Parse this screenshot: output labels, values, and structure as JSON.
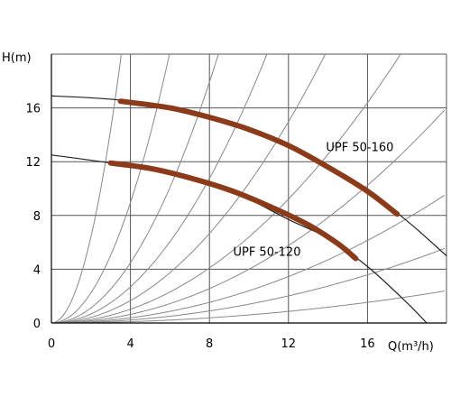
{
  "chart_data": {
    "type": "line",
    "title": "",
    "xlabel": "Q(m³/h)",
    "ylabel": "H(m)",
    "xlim": [
      0,
      20
    ],
    "ylim": [
      0,
      20
    ],
    "xticks": [
      "0",
      "4",
      "8",
      "12",
      "16"
    ],
    "yticks": [
      "0",
      "4",
      "8",
      "12",
      "16"
    ],
    "grid": true,
    "series": [
      {
        "name": "UPF 50-160",
        "style": "thick-brown",
        "color": "#8b3a1a",
        "points": [
          [
            3.5,
            16.5
          ],
          [
            6,
            16.0
          ],
          [
            8,
            15.3
          ],
          [
            10,
            14.4
          ],
          [
            12,
            13.2
          ],
          [
            14,
            11.6
          ],
          [
            16,
            9.8
          ],
          [
            17.5,
            8.1
          ]
        ]
      },
      {
        "name": "UPF 50-120",
        "style": "thick-brown",
        "color": "#8b3a1a",
        "points": [
          [
            3,
            11.9
          ],
          [
            5,
            11.5
          ],
          [
            7,
            10.8
          ],
          [
            9,
            9.9
          ],
          [
            11,
            8.7
          ],
          [
            13,
            7.3
          ],
          [
            14.5,
            5.9
          ],
          [
            15.4,
            4.8
          ]
        ]
      },
      {
        "name": "",
        "style": "thin-black",
        "color": "#222222",
        "points": [
          [
            0,
            16.9
          ],
          [
            4,
            16.5
          ],
          [
            8,
            15.3
          ],
          [
            12,
            13.2
          ],
          [
            16,
            9.8
          ],
          [
            18,
            7.6
          ],
          [
            20,
            5.0
          ]
        ]
      },
      {
        "name": "",
        "style": "thin-black",
        "color": "#222222",
        "points": [
          [
            0,
            12.5
          ],
          [
            3,
            11.9
          ],
          [
            6,
            11.2
          ],
          [
            9,
            9.9
          ],
          [
            12,
            7.7
          ],
          [
            14,
            6.3
          ],
          [
            16,
            4.2
          ],
          [
            18,
            1.5
          ],
          [
            19,
            0
          ]
        ]
      }
    ],
    "system_curves": {
      "color": "#888888",
      "k": [
        40,
        14,
        7,
        4.2,
        2.6,
        1.6,
        1.0,
        0.6,
        0.35,
        0.15
      ]
    },
    "annotations": [
      {
        "text": "UPF 50-160",
        "x": 13.9,
        "y": 12.8
      },
      {
        "text": "UPF 50-120",
        "x": 9.2,
        "y": 5.0
      }
    ]
  }
}
